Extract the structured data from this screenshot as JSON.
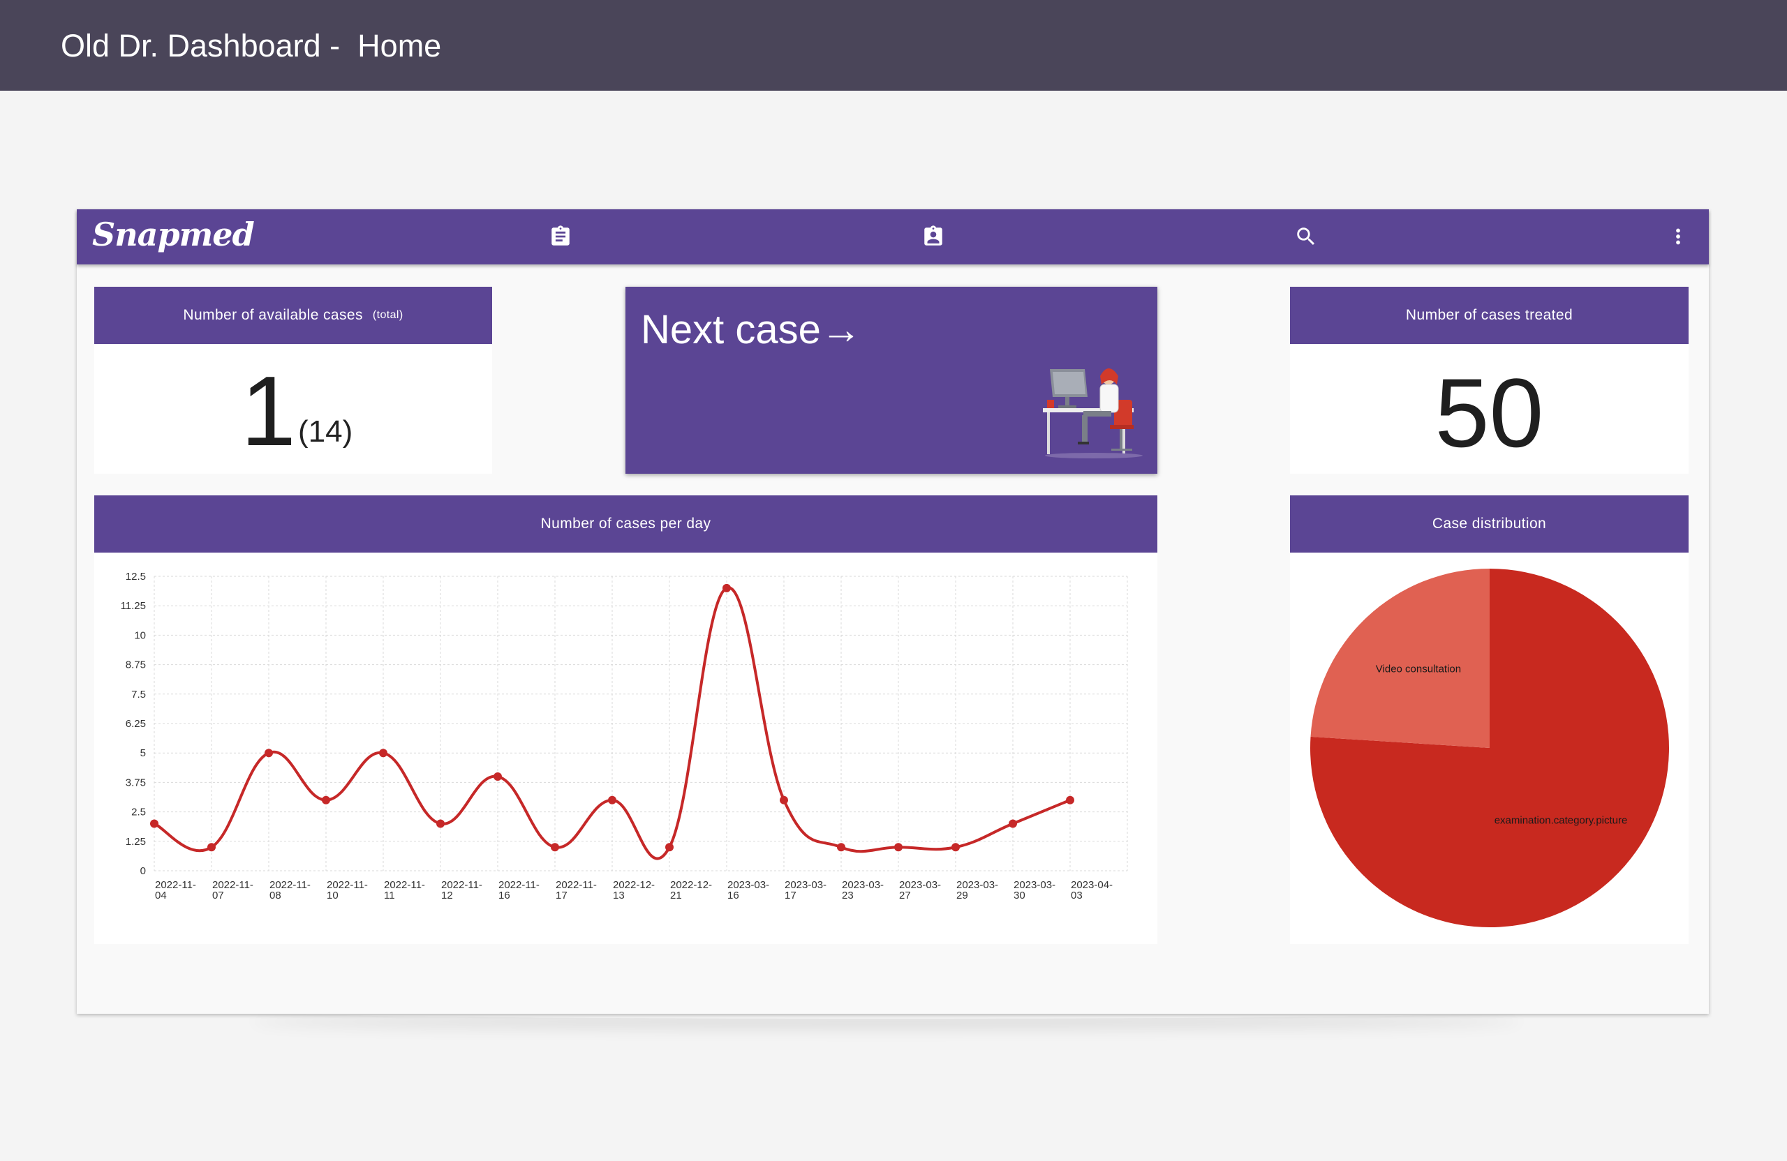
{
  "page_header": {
    "title": "Old Dr. Dashboard -  Home"
  },
  "appbar": {
    "logo_text": "Snapmed",
    "icons": [
      "clipboard-list-icon",
      "clipboard-account-icon",
      "search-icon",
      "more-vert-icon"
    ]
  },
  "cards": {
    "available": {
      "title": "Number of available cases",
      "title_note": "(total)",
      "value": "1",
      "total": "(14)"
    },
    "next_case": {
      "label": "Next case→"
    },
    "treated": {
      "title": "Number of cases treated",
      "value": "50"
    },
    "per_day": {
      "title": "Number of cases per day"
    },
    "distribution": {
      "title": "Case distribution"
    }
  },
  "colors": {
    "header_bg": "#4a4559",
    "accent_purple": "#5b4594",
    "line_red": "#c62828",
    "pie_main": "#c8291f",
    "pie_secondary": "#e06152"
  },
  "chart_data": [
    {
      "type": "line",
      "title": "Number of cases per day",
      "x": [
        "2022-11-04",
        "2022-11-07",
        "2022-11-08",
        "2022-11-10",
        "2022-11-11",
        "2022-11-12",
        "2022-11-16",
        "2022-11-17",
        "2022-12-13",
        "2022-12-21",
        "2023-03-16",
        "2023-03-17",
        "2023-03-23",
        "2023-03-27",
        "2023-03-29",
        "2023-03-30",
        "2023-04-03"
      ],
      "values": [
        2,
        1,
        5,
        3,
        5,
        2,
        4,
        1,
        3,
        1,
        12,
        3,
        1,
        1,
        1,
        2,
        3
      ],
      "y_ticks": [
        "0",
        "1.25",
        "2.5",
        "3.75",
        "5",
        "6.25",
        "7.5",
        "8.75",
        "10",
        "11.25",
        "12.5"
      ],
      "ylim": [
        0,
        12.5
      ],
      "grid": true,
      "smooth": true
    },
    {
      "type": "pie",
      "title": "Case distribution",
      "labels": [
        "examination.category.picture",
        "Video consultation"
      ],
      "values": [
        38,
        12
      ]
    }
  ]
}
